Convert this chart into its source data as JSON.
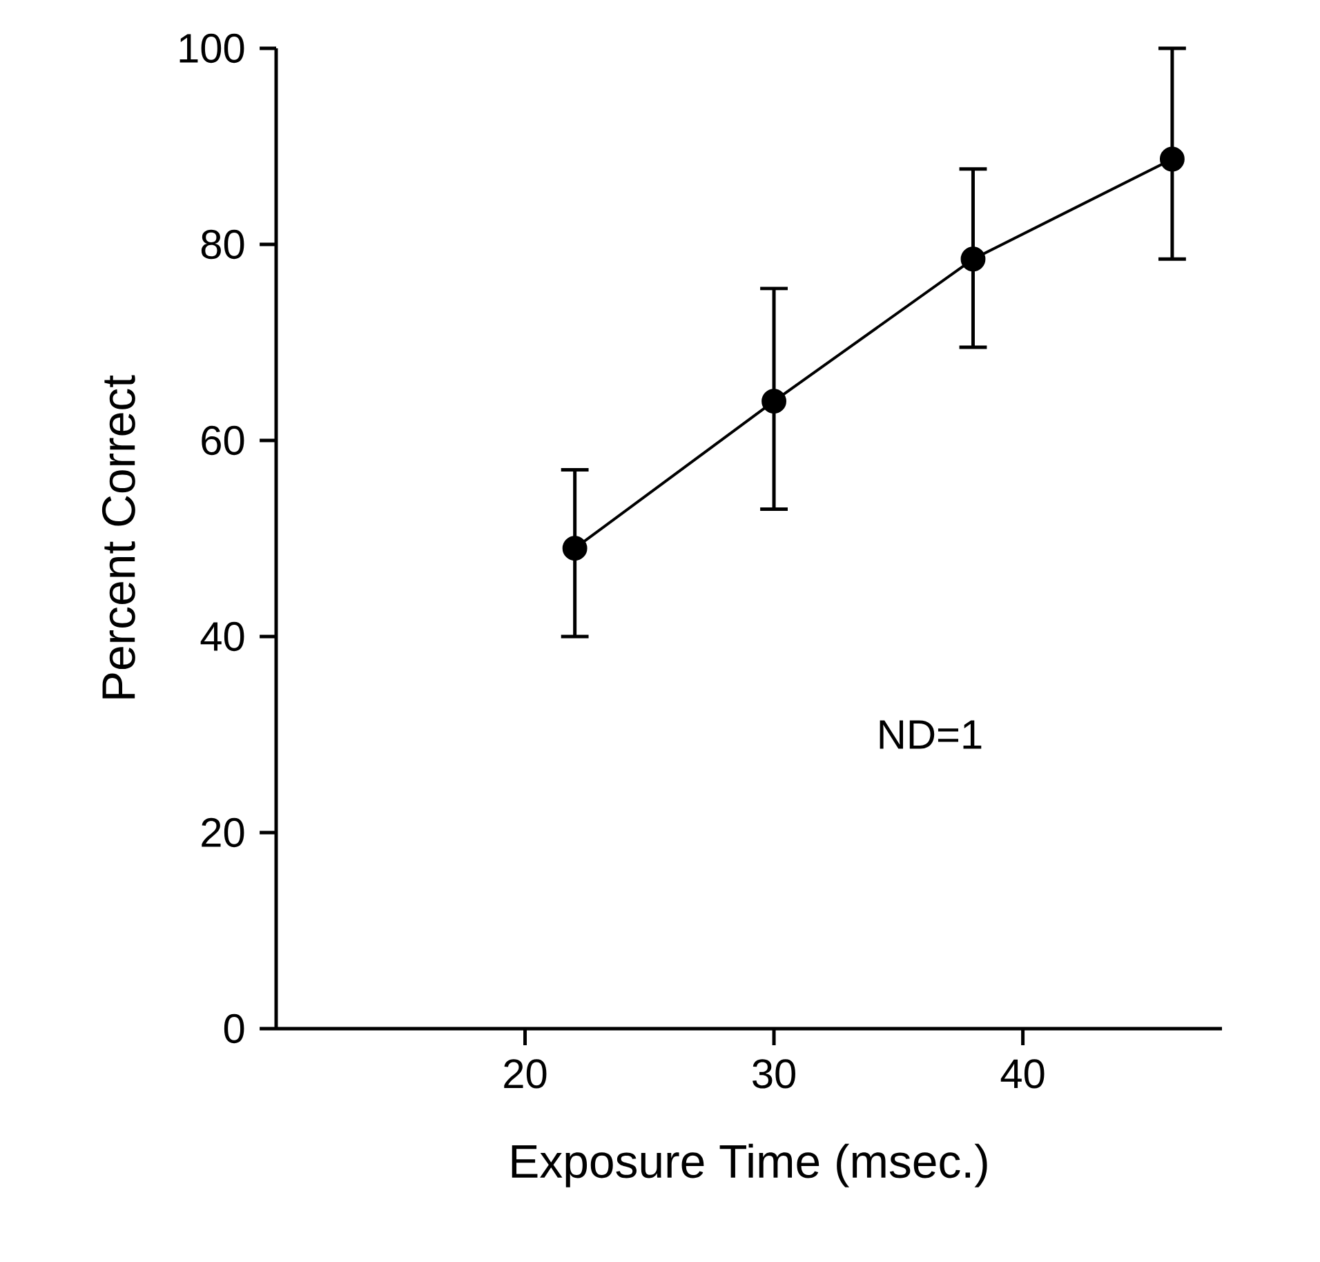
{
  "chart_data": {
    "type": "line",
    "xlabel": "Exposure Time (msec.)",
    "ylabel": "Percent Correct",
    "x": [
      22,
      30,
      38,
      46
    ],
    "values": [
      49,
      64,
      78.5,
      88.7
    ],
    "errors": [
      [
        40,
        57
      ],
      [
        53,
        75.5
      ],
      [
        69.5,
        87.7
      ],
      [
        78.5,
        100
      ]
    ],
    "color": "#000000",
    "marker": "circle",
    "line_style": "solid",
    "xlim": [
      10,
      48
    ],
    "ylim": [
      0,
      100
    ],
    "xticks": [
      20,
      30,
      40
    ],
    "yticks": [
      0,
      20,
      40,
      60,
      80,
      100
    ],
    "annotations": [
      "ND=1"
    ]
  }
}
